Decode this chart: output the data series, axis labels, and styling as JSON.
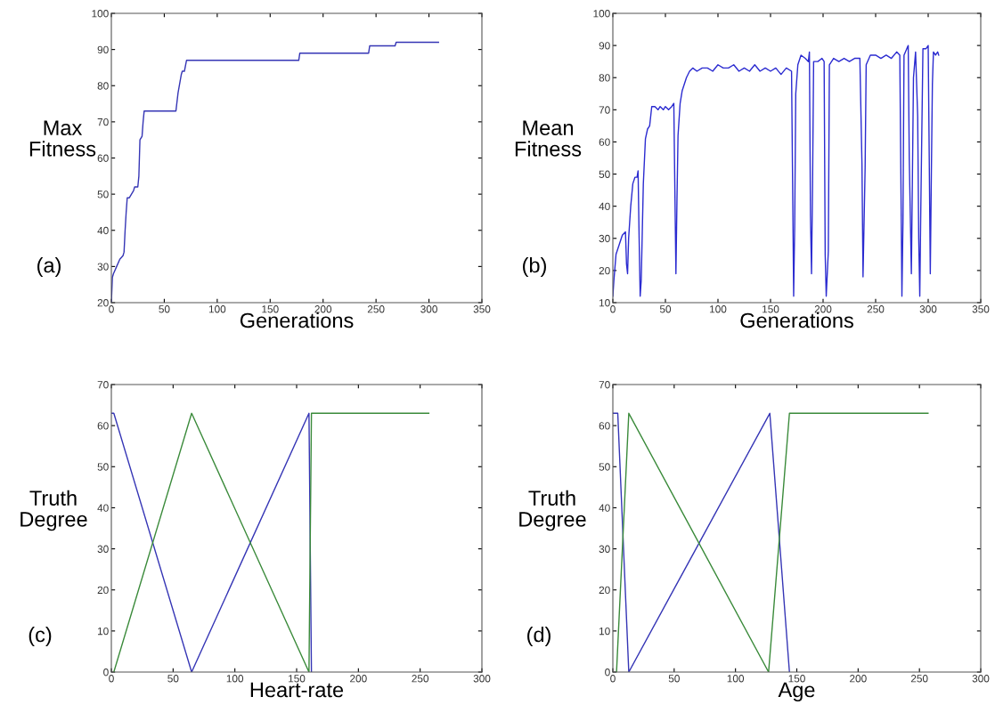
{
  "chart_data": [
    {
      "type": "line",
      "xlabel": "Generations",
      "ylabel": "Max\nFitness",
      "annotations": [
        "(a)"
      ],
      "xlim": [
        0,
        350
      ],
      "ylim": [
        20,
        100
      ],
      "xticks": [
        0,
        50,
        100,
        150,
        200,
        250,
        300,
        350
      ],
      "yticks": [
        20,
        30,
        40,
        50,
        60,
        70,
        80,
        90,
        100
      ],
      "grid": false,
      "series": [
        {
          "color": "#3535b5",
          "x": [
            0,
            1,
            2,
            5,
            8,
            11,
            12,
            13,
            14,
            15,
            17,
            19,
            21,
            22,
            25,
            26,
            27,
            29,
            30,
            31,
            61,
            63,
            66,
            67,
            69,
            71,
            177,
            178,
            243,
            244,
            268,
            269,
            309
          ],
          "values": [
            20,
            27,
            28,
            30,
            32,
            33,
            34,
            40,
            45,
            49,
            49,
            50,
            51,
            52,
            52,
            55,
            65,
            66,
            70,
            73,
            73,
            78,
            83,
            84,
            84,
            87,
            87,
            89,
            89,
            91,
            91,
            92,
            92
          ]
        }
      ]
    },
    {
      "type": "line",
      "xlabel": "Generations",
      "ylabel": "Mean\nFitness",
      "annotations": [
        "(b)"
      ],
      "xlim": [
        0,
        350
      ],
      "ylim": [
        10,
        100
      ],
      "xticks": [
        0,
        50,
        100,
        150,
        200,
        250,
        300,
        350
      ],
      "yticks": [
        10,
        20,
        30,
        40,
        50,
        60,
        70,
        80,
        90,
        100
      ],
      "grid": false,
      "series": [
        {
          "color": "#2b2bd0",
          "x": [
            0,
            1,
            3,
            6,
            9,
            12,
            13,
            14,
            15,
            17,
            19,
            21,
            23,
            24,
            25,
            26,
            27,
            28,
            29,
            31,
            33,
            35,
            37,
            40,
            43,
            45,
            48,
            50,
            53,
            56,
            58,
            59,
            60,
            61,
            62,
            64,
            66,
            70,
            73,
            76,
            80,
            85,
            90,
            95,
            100,
            105,
            110,
            115,
            120,
            125,
            130,
            135,
            140,
            145,
            150,
            155,
            160,
            165,
            170,
            171,
            172,
            173,
            174,
            176,
            179,
            183,
            186,
            187,
            188,
            189,
            190,
            191,
            195,
            199,
            201,
            202,
            203,
            205,
            206,
            210,
            215,
            220,
            225,
            230,
            235,
            237,
            238,
            240,
            241,
            245,
            250,
            255,
            260,
            265,
            270,
            273,
            274,
            275,
            276,
            277,
            281,
            282,
            283,
            284,
            286,
            288,
            290,
            291,
            292,
            293,
            295,
            298,
            300,
            301,
            302,
            303,
            304,
            305,
            307,
            309,
            310
          ],
          "values": [
            12,
            17,
            25,
            28,
            31,
            32,
            22,
            19,
            30,
            40,
            47,
            49,
            49,
            51,
            30,
            12,
            17,
            32,
            47,
            61,
            64,
            65,
            71,
            71,
            70,
            71,
            70,
            71,
            70,
            71,
            72,
            45,
            19,
            42,
            62,
            72,
            76,
            80,
            82,
            83,
            82,
            83,
            83,
            82,
            84,
            83,
            83,
            84,
            82,
            83,
            82,
            84,
            82,
            83,
            82,
            83,
            81,
            83,
            82,
            48,
            12,
            34,
            75,
            84,
            87,
            86,
            85,
            88,
            37,
            19,
            47,
            85,
            85,
            86,
            85,
            25,
            12,
            26,
            84,
            86,
            85,
            86,
            85,
            86,
            86,
            53,
            18,
            52,
            84,
            87,
            87,
            86,
            87,
            86,
            88,
            87,
            50,
            12,
            35,
            87,
            90,
            55,
            37,
            19,
            80,
            88,
            68,
            30,
            12,
            40,
            89,
            89,
            90,
            55,
            19,
            50,
            78,
            88,
            87,
            88,
            87
          ]
        }
      ]
    },
    {
      "type": "line",
      "xlabel": "Heart-rate",
      "ylabel": "Truth\nDegree",
      "annotations": [
        "(c)"
      ],
      "xlim": [
        0,
        300
      ],
      "ylim": [
        0,
        70
      ],
      "xticks": [
        0,
        50,
        100,
        150,
        200,
        250,
        300
      ],
      "yticks": [
        0,
        10,
        20,
        30,
        40,
        50,
        60,
        70
      ],
      "grid": false,
      "series": [
        {
          "color": "#3535b5",
          "x": [
            0,
            2,
            65,
            160,
            162
          ],
          "values": [
            63,
            63,
            0,
            63,
            0
          ]
        },
        {
          "color": "#3a8a3a",
          "x": [
            2,
            65,
            160,
            162,
            257
          ],
          "values": [
            0,
            63,
            0,
            63,
            63
          ]
        }
      ]
    },
    {
      "type": "line",
      "xlabel": "Age",
      "ylabel": "Truth\nDegree",
      "annotations": [
        "(d)"
      ],
      "xlim": [
        0,
        300
      ],
      "ylim": [
        0,
        70
      ],
      "xticks": [
        0,
        50,
        100,
        150,
        200,
        250,
        300
      ],
      "yticks": [
        0,
        10,
        20,
        30,
        40,
        50,
        60,
        70
      ],
      "grid": false,
      "series": [
        {
          "color": "#3535b5",
          "x": [
            0,
            4,
            13,
            128,
            144
          ],
          "values": [
            63,
            63,
            0,
            63,
            0
          ]
        },
        {
          "color": "#3a8a3a",
          "x": [
            3,
            13,
            127,
            144,
            257
          ],
          "values": [
            0,
            63,
            0,
            63,
            63
          ]
        }
      ]
    }
  ]
}
